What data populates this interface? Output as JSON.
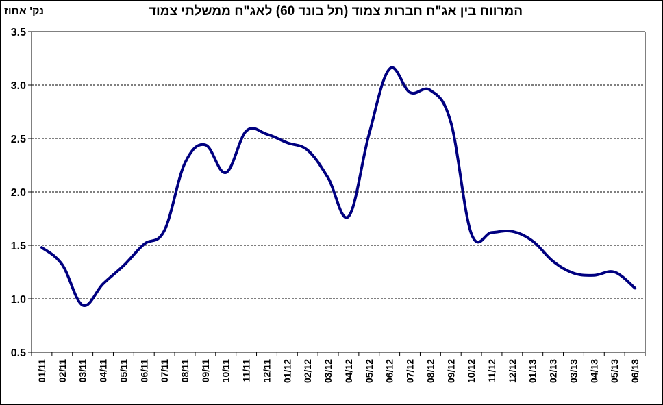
{
  "title": "המרווח בין אג\"ח חברות צמוד (תל בונד 60) לאג\"ח ממשלתי צמוד",
  "unit_label": "נק' אחוז",
  "colors": {
    "line": "#000080",
    "grid": "#000000",
    "background": "#ffffff"
  },
  "chart_data": {
    "type": "line",
    "title": "המרווח בין אג\"ח חברות צמוד (תל בונד 60) לאג\"ח ממשלתי צמוד",
    "xlabel": "",
    "ylabel": "נק' אחוז",
    "ylim": [
      0.5,
      3.5
    ],
    "yticks": [
      0.5,
      1.0,
      1.5,
      2.0,
      2.5,
      3.0,
      3.5
    ],
    "ytick_labels": [
      "0.5",
      "1.0",
      "1.5",
      "2.0",
      "2.5",
      "3.0",
      "3.5"
    ],
    "grid": "horizontal dashed",
    "legend": "none",
    "categories": [
      "01/11",
      "02/11",
      "03/11",
      "04/11",
      "05/11",
      "06/11",
      "07/11",
      "08/11",
      "09/11",
      "10/11",
      "11/11",
      "12/11",
      "01/12",
      "02/12",
      "03/12",
      "04/12",
      "05/12",
      "06/12",
      "07/12",
      "08/12",
      "09/12",
      "10/12",
      "11/12",
      "12/12",
      "01/13",
      "02/13",
      "03/13",
      "04/13",
      "05/13",
      "06/13"
    ],
    "series": [
      {
        "values": [
          1.48,
          1.32,
          0.94,
          1.14,
          1.31,
          1.51,
          1.64,
          2.27,
          2.44,
          2.18,
          2.57,
          2.54,
          2.46,
          2.39,
          2.13,
          1.77,
          2.54,
          3.15,
          2.93,
          2.95,
          2.65,
          1.61,
          1.62,
          1.63,
          1.54,
          1.35,
          1.24,
          1.22,
          1.25,
          1.1
        ]
      }
    ]
  }
}
